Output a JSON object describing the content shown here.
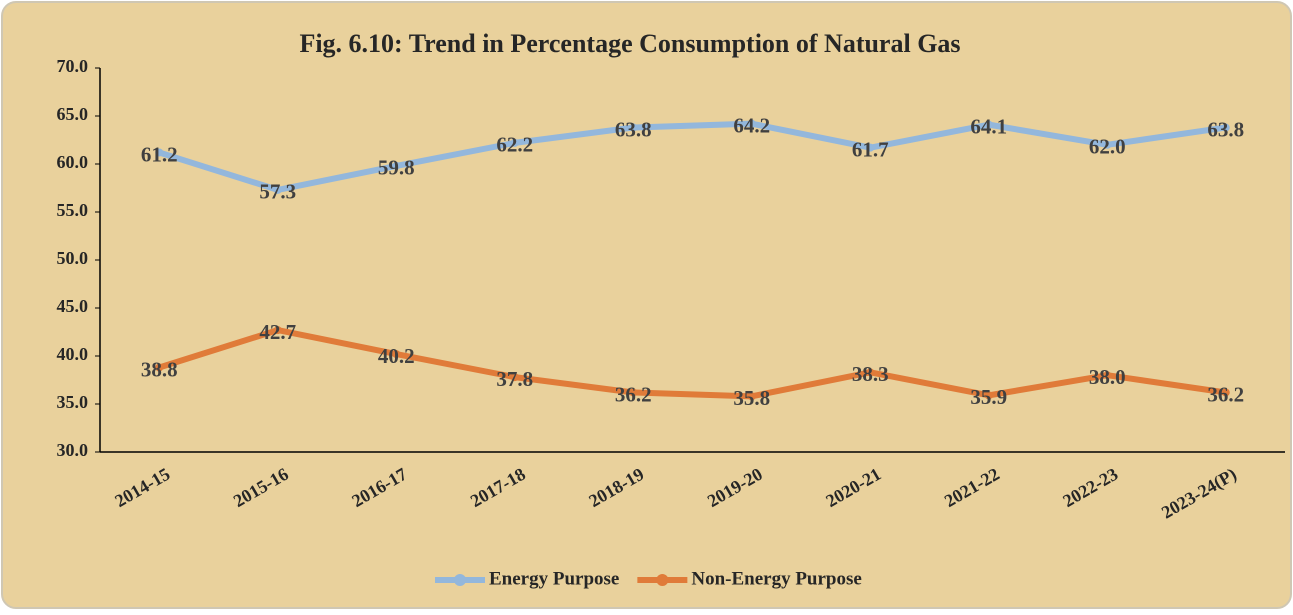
{
  "chart_data": {
    "type": "line",
    "title": "Fig. 6.10: Trend in Percentage Consumption of Natural Gas",
    "categories": [
      "2014-15",
      "2015-16",
      "2016-17",
      "2017-18",
      "2018-19",
      "2019-20",
      "2020-21",
      "2021-22",
      "2022-23",
      "2023-24(P)"
    ],
    "series": [
      {
        "name": "Energy Purpose",
        "color": "#93b7dc",
        "values": [
          61.2,
          57.3,
          59.8,
          62.2,
          63.8,
          64.2,
          61.7,
          64.1,
          62.0,
          63.8
        ],
        "value_labels": [
          "61.2",
          "57.3",
          "59.8",
          "62.2",
          "63.8",
          "64.2",
          "61.7",
          "64.1",
          "62.0",
          "63.8"
        ]
      },
      {
        "name": "Non-Energy Purpose",
        "color": "#e07b39",
        "values": [
          38.8,
          42.7,
          40.2,
          37.8,
          36.2,
          35.8,
          38.3,
          35.9,
          38.0,
          36.2
        ],
        "value_labels": [
          "38.8",
          "42.7",
          "40.2",
          "37.8",
          "36.2",
          "35.8",
          "38.3",
          "35.9",
          "38.0",
          "36.2"
        ]
      }
    ],
    "ylim": [
      30,
      70
    ],
    "yticks": [
      {
        "value": 30,
        "label": "30.0"
      },
      {
        "value": 35,
        "label": "35.0"
      },
      {
        "value": 40,
        "label": "40.0"
      },
      {
        "value": 45,
        "label": "45.0"
      },
      {
        "value": 50,
        "label": "50.0"
      },
      {
        "value": 55,
        "label": "55.0"
      },
      {
        "value": 60,
        "label": "60.0"
      },
      {
        "value": 65,
        "label": "65.0"
      },
      {
        "value": 70,
        "label": "70.0"
      }
    ],
    "legend": "bottom"
  }
}
